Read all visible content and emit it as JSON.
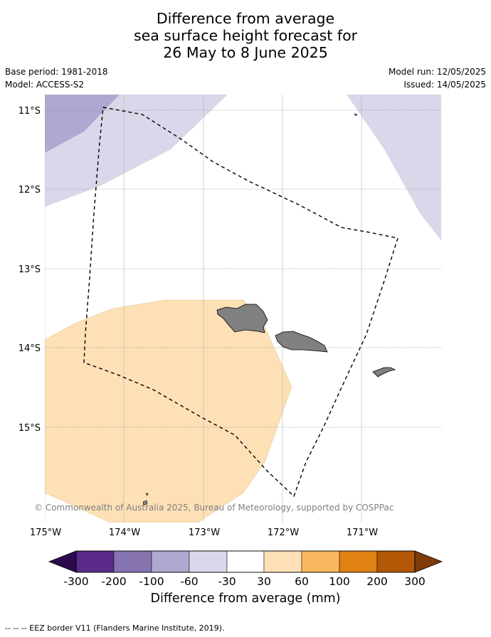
{
  "title": {
    "line1": "Difference from average",
    "line2": "sea surface height forecast for",
    "line3": "26 May to 8 June 2025"
  },
  "meta": {
    "base_period": "Base period: 1981-2018",
    "model": "Model: ACCESS-S2",
    "model_run": "Model run: 12/05/2025",
    "issued": "Issued: 14/05/2025"
  },
  "map": {
    "extent": {
      "lon_min": -175.0,
      "lon_max": -170.0,
      "lat_min": -16.2,
      "lat_max": -10.8
    },
    "lat_ticks": [
      {
        "value": -11,
        "label": "11°S"
      },
      {
        "value": -12,
        "label": "12°S"
      },
      {
        "value": -13,
        "label": "13°S"
      },
      {
        "value": -14,
        "label": "14°S"
      },
      {
        "value": -15,
        "label": "15°S"
      }
    ],
    "lon_ticks": [
      {
        "value": -175,
        "label": "175°W"
      },
      {
        "value": -174,
        "label": "174°W"
      },
      {
        "value": -173,
        "label": "173°W"
      },
      {
        "value": -172,
        "label": "172°W"
      },
      {
        "value": -171,
        "label": "171°W"
      }
    ],
    "copyright": "© Commonwealth of Australia 2025, Bureau of Meteorology, supported by COSPPac",
    "colors": {
      "land": "#808080",
      "band_neg_30_60": "#d8d8ea",
      "band_neg_60_100": "#b0a8d0",
      "band_pos_30_60": "#fde0b6"
    }
  },
  "colorbar": {
    "colors": [
      "#2d0a4e",
      "#5a2b8a",
      "#8574af",
      "#b0a8d0",
      "#d8d8ea",
      "#ffffff",
      "#fde0b6",
      "#fbb75f",
      "#e08114",
      "#b35806",
      "#7f3b08"
    ],
    "tick_labels": [
      "-300",
      "-200",
      "-100",
      "-60",
      "-30",
      "30",
      "60",
      "100",
      "200",
      "300"
    ],
    "label": "Difference from average (mm)"
  },
  "footer": "--  --  -- EEZ border V11 (Flanders Marine Institute, 2019)."
}
